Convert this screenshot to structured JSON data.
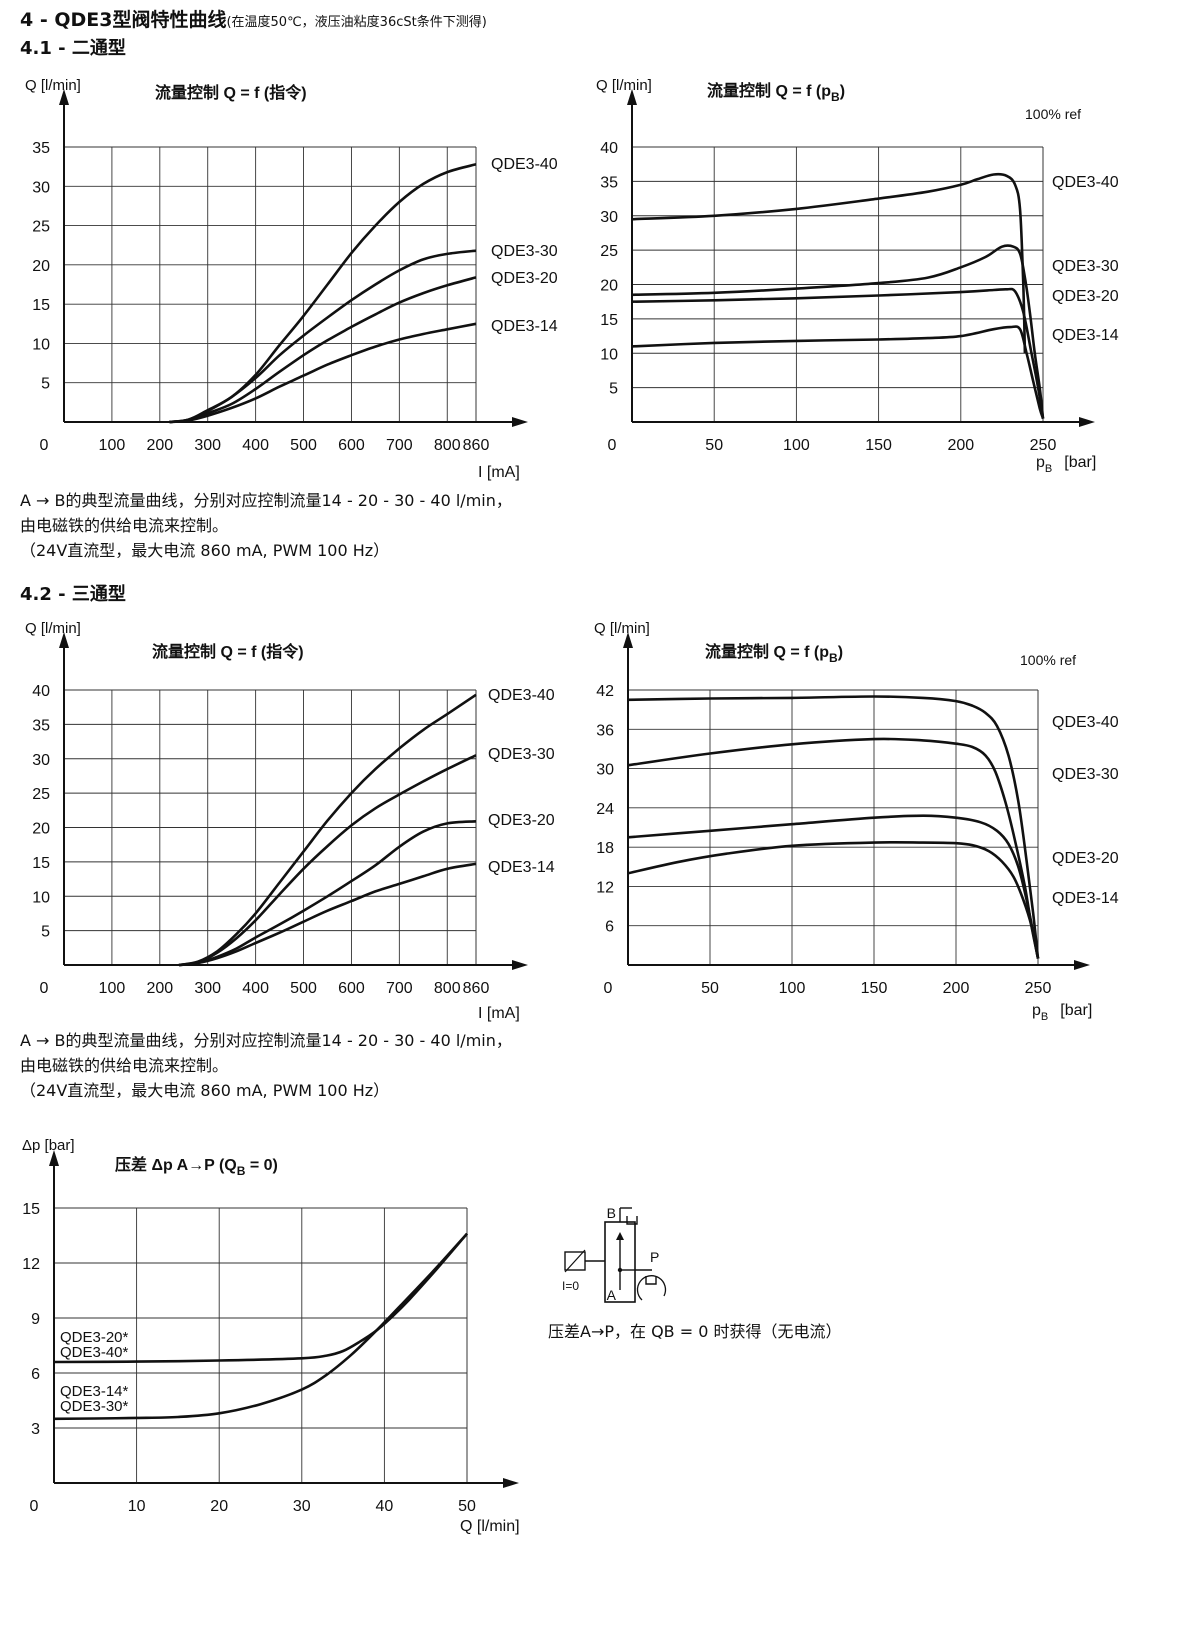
{
  "header": {
    "title_main": "4 - QDE3型阀特性曲线",
    "title_note": "(在温度50℃，液压油粘度36cSt条件下测得)",
    "sec1": "4.1 - 二通型",
    "sec2": "4.2 - 三通型"
  },
  "captions": {
    "block1": [
      "A → B的典型流量曲线，分别对应控制流量14 - 20 - 30 - 40 l/min，",
      "由电磁铁的供给电流来控制。",
      "（24V直流型，最大电流 860 mA, PWM 100 Hz）"
    ],
    "block2": [
      "A → B的典型流量曲线，分别对应控制流量14 - 20 - 30 - 40 l/min，",
      "由电磁铁的供给电流来控制。",
      "（24V直流型，最大电流 860 mA, PWM 100 Hz）"
    ]
  },
  "symbol": {
    "label_b": "B",
    "label_p": "P",
    "label_a": "A",
    "label_i0": "I=0",
    "note": "压差A→P，在 QB = 0 时获得（无电流）"
  },
  "chart_data": [
    {
      "id": "c1",
      "type": "line",
      "title": "流量控制 Q = f (指令)",
      "ylabel": "Q [l/min]",
      "xlabel": "I [mA]",
      "x_ticks": [
        0,
        100,
        200,
        300,
        400,
        500,
        600,
        700,
        800,
        860
      ],
      "y_ticks": [
        5,
        10,
        15,
        20,
        25,
        30,
        35
      ],
      "xlim": [
        0,
        860
      ],
      "ylim": [
        0,
        35
      ],
      "grid": true,
      "series": [
        {
          "name": "QDE3-40",
          "x": [
            220,
            260,
            300,
            350,
            400,
            450,
            500,
            550,
            600,
            650,
            700,
            750,
            800,
            860
          ],
          "y": [
            0,
            0.3,
            1.5,
            3.2,
            6,
            9.8,
            13.5,
            17.5,
            21.5,
            25,
            28,
            30.3,
            31.8,
            32.8
          ]
        },
        {
          "name": "QDE3-30",
          "x": [
            220,
            260,
            300,
            350,
            400,
            450,
            500,
            550,
            600,
            650,
            700,
            750,
            800,
            860
          ],
          "y": [
            0,
            0.3,
            1.4,
            3.2,
            5.6,
            8.5,
            11,
            13.3,
            15.5,
            17.5,
            19.3,
            20.7,
            21.4,
            21.8
          ]
        },
        {
          "name": "QDE3-20",
          "x": [
            220,
            260,
            300,
            350,
            400,
            450,
            500,
            550,
            600,
            650,
            700,
            750,
            800,
            860
          ],
          "y": [
            0,
            0.2,
            1.1,
            2.3,
            4.2,
            6.4,
            8.5,
            10.4,
            12.1,
            13.7,
            15.2,
            16.4,
            17.4,
            18.4
          ]
        },
        {
          "name": "QDE3-14",
          "x": [
            220,
            260,
            300,
            350,
            400,
            450,
            500,
            550,
            600,
            650,
            700,
            750,
            800,
            860
          ],
          "y": [
            0,
            0.2,
            0.8,
            1.8,
            3,
            4.5,
            5.9,
            7.3,
            8.5,
            9.6,
            10.5,
            11.2,
            11.8,
            12.5
          ]
        }
      ]
    },
    {
      "id": "c2",
      "type": "line",
      "title": "流量控制 Q = f (p",
      "title_sub": "B",
      "title_end": ")",
      "ylabel": "Q [l/min]",
      "xlabel_p": "p",
      "xlabel_sub": "B",
      "xlabel_unit": "[bar]",
      "annotation": "100% ref",
      "x_ticks": [
        0,
        50,
        100,
        150,
        200,
        250
      ],
      "y_ticks": [
        5,
        10,
        15,
        20,
        25,
        30,
        35,
        40
      ],
      "xlim": [
        0,
        250
      ],
      "ylim": [
        0,
        40
      ],
      "grid": true,
      "series": [
        {
          "name": "QDE3-40",
          "x": [
            0,
            50,
            100,
            150,
            180,
            200,
            210,
            220,
            228,
            233,
            236,
            238,
            239
          ],
          "y": [
            29.5,
            30,
            31,
            32.5,
            33.5,
            34.5,
            35.3,
            36,
            35.8,
            34.5,
            31,
            20,
            10
          ]
        },
        {
          "name": "QDE3-30",
          "x": [
            0,
            50,
            100,
            150,
            180,
            200,
            215,
            225,
            232,
            236,
            239,
            242,
            245,
            248,
            250
          ],
          "y": [
            18.5,
            18.8,
            19.4,
            20.2,
            21,
            22.5,
            24,
            25.5,
            25.5,
            24.5,
            21,
            16,
            10,
            5,
            0.5
          ]
        },
        {
          "name": "QDE3-20",
          "x": [
            0,
            50,
            100,
            150,
            200,
            220,
            228,
            233,
            238,
            243,
            247,
            250
          ],
          "y": [
            17.5,
            17.7,
            18,
            18.4,
            18.9,
            19.2,
            19.3,
            19,
            16,
            10,
            5,
            0.5
          ]
        },
        {
          "name": "QDE3-14",
          "x": [
            0,
            50,
            100,
            150,
            180,
            200,
            220,
            230,
            236,
            240,
            244,
            248,
            250
          ],
          "y": [
            11,
            11.5,
            11.8,
            12,
            12.2,
            12.5,
            13.5,
            13.8,
            13.5,
            10,
            6,
            2,
            0.5
          ]
        }
      ]
    },
    {
      "id": "c3",
      "type": "line",
      "title": "流量控制 Q = f (指令)",
      "ylabel": "Q [l/min]",
      "xlabel": "I [mA]",
      "x_ticks": [
        0,
        100,
        200,
        300,
        400,
        500,
        600,
        700,
        800,
        860
      ],
      "y_ticks": [
        5,
        10,
        15,
        20,
        25,
        30,
        35,
        40
      ],
      "xlim": [
        0,
        860
      ],
      "ylim": [
        0,
        40
      ],
      "grid": true,
      "series": [
        {
          "name": "QDE3-40",
          "x": [
            240,
            280,
            320,
            360,
            400,
            450,
            500,
            550,
            600,
            650,
            700,
            750,
            800,
            860
          ],
          "y": [
            0,
            0.5,
            2,
            4.5,
            7.5,
            12,
            16.5,
            21,
            25,
            28.5,
            31.5,
            34.2,
            36.5,
            39.3
          ]
        },
        {
          "name": "QDE3-30",
          "x": [
            240,
            280,
            320,
            360,
            400,
            450,
            500,
            550,
            600,
            650,
            700,
            750,
            800,
            860
          ],
          "y": [
            0,
            0.4,
            1.8,
            3.9,
            6.5,
            10.3,
            14,
            17.3,
            20.3,
            22.8,
            24.8,
            26.7,
            28.5,
            30.5
          ]
        },
        {
          "name": "QDE3-20",
          "x": [
            240,
            280,
            320,
            360,
            400,
            450,
            500,
            550,
            600,
            650,
            700,
            750,
            800,
            860
          ],
          "y": [
            0,
            0.3,
            1.2,
            2.4,
            4,
            5.9,
            7.9,
            10,
            12.2,
            14.5,
            17.2,
            19.4,
            20.6,
            20.9
          ]
        },
        {
          "name": "QDE3-14",
          "x": [
            240,
            280,
            320,
            360,
            400,
            450,
            500,
            550,
            600,
            650,
            700,
            750,
            800,
            860
          ],
          "y": [
            0,
            0.3,
            1,
            2,
            3.2,
            4.7,
            6.3,
            7.9,
            9.3,
            10.7,
            11.8,
            12.9,
            14,
            14.7
          ]
        }
      ]
    },
    {
      "id": "c4",
      "type": "line",
      "title": "流量控制 Q = f (p",
      "title_sub": "B",
      "title_end": ")",
      "ylabel": "Q [l/min]",
      "xlabel_p": "p",
      "xlabel_sub": "B",
      "xlabel_unit": "[bar]",
      "annotation": "100% ref",
      "x_ticks": [
        0,
        50,
        100,
        150,
        200,
        250
      ],
      "y_ticks": [
        6,
        12,
        18,
        24,
        30,
        36,
        42
      ],
      "xlim": [
        0,
        250
      ],
      "ylim": [
        0,
        42
      ],
      "grid": true,
      "series": [
        {
          "name": "QDE3-40",
          "x": [
            0,
            50,
            100,
            150,
            180,
            200,
            210,
            218,
            225,
            232,
            238,
            243,
            247,
            250
          ],
          "y": [
            40.5,
            40.7,
            40.8,
            41,
            40.8,
            40.3,
            39.6,
            38.5,
            36.5,
            32,
            25,
            16,
            8,
            1
          ]
        },
        {
          "name": "QDE3-30",
          "x": [
            0,
            50,
            100,
            150,
            180,
            200,
            210,
            218,
            224,
            230,
            236,
            242,
            246,
            250
          ],
          "y": [
            30.5,
            32.3,
            33.7,
            34.5,
            34.3,
            33.8,
            33.3,
            32,
            29.5,
            25,
            19,
            12,
            6,
            1
          ]
        },
        {
          "name": "QDE3-20",
          "x": [
            0,
            50,
            100,
            150,
            180,
            200,
            215,
            225,
            232,
            238,
            243,
            247,
            250
          ],
          "y": [
            19.5,
            20.5,
            21.5,
            22.5,
            22.8,
            22.5,
            21.8,
            20.5,
            18.5,
            15,
            10,
            5,
            1
          ]
        },
        {
          "name": "QDE3-14",
          "x": [
            0,
            30,
            60,
            100,
            150,
            180,
            200,
            210,
            220,
            228,
            235,
            241,
            246,
            250
          ],
          "y": [
            14,
            15.7,
            17,
            18.2,
            18.7,
            18.7,
            18.6,
            18.3,
            17.4,
            15.8,
            13.5,
            10,
            6,
            1
          ]
        }
      ]
    },
    {
      "id": "c5",
      "type": "line",
      "title": "压差 Δp  A→P (Q",
      "title_sub": "B",
      "title_end": " = 0)",
      "ylabel": "Δp [bar]",
      "xlabel": "Q [l/min]",
      "x_ticks": [
        0,
        10,
        20,
        30,
        40,
        50
      ],
      "y_ticks": [
        3,
        6,
        9,
        12,
        15
      ],
      "xlim": [
        0,
        50
      ],
      "ylim": [
        0,
        15
      ],
      "grid": true,
      "series": [
        {
          "name": "QDE3-20*/QDE3-40*",
          "x": [
            0,
            10,
            20,
            30,
            33,
            35,
            37,
            39,
            41,
            43,
            46,
            50
          ],
          "y": [
            6.6,
            6.62,
            6.68,
            6.8,
            6.95,
            7.2,
            7.7,
            8.3,
            9.1,
            10,
            11.5,
            13.6
          ]
        },
        {
          "name": "QDE3-14*/QDE3-30*",
          "x": [
            0,
            5,
            10,
            15,
            20,
            25,
            30,
            33,
            36,
            39,
            42,
            46,
            50
          ],
          "y": [
            3.5,
            3.52,
            3.55,
            3.6,
            3.8,
            4.3,
            5.1,
            5.9,
            7,
            8.3,
            9.7,
            11.6,
            13.6
          ]
        }
      ],
      "labels": [
        {
          "text": "QDE3-20*"
        },
        {
          "text": "QDE3-40*"
        },
        {
          "text": "QDE3-14*"
        },
        {
          "text": "QDE3-30*"
        }
      ]
    }
  ]
}
